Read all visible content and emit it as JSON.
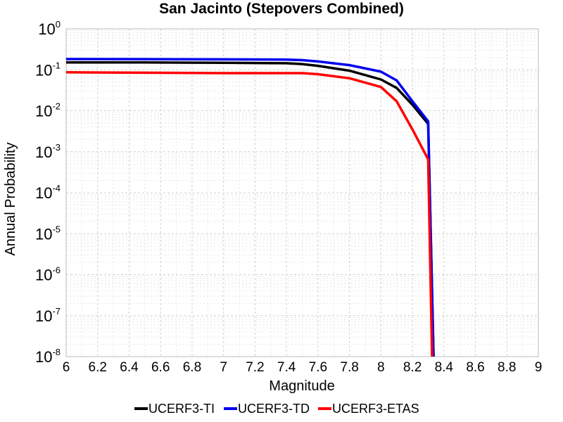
{
  "chart_data": {
    "type": "line",
    "title": "San Jacinto (Stepovers Combined)",
    "xlabel": "Magnitude",
    "ylabel": "Annual Probability",
    "xlim": [
      6,
      9
    ],
    "ylim": [
      1e-08,
      1
    ],
    "y_scale": "log",
    "grid": true,
    "legend_position": "bottom",
    "x_ticks": [
      "6",
      "6.2",
      "6.4",
      "6.6",
      "6.8",
      "7",
      "7.2",
      "7.4",
      "7.6",
      "7.8",
      "8",
      "8.2",
      "8.4",
      "8.6",
      "8.8",
      "9"
    ],
    "y_ticks": [
      {
        "base": "10",
        "exp": "0"
      },
      {
        "base": "10",
        "exp": "-1"
      },
      {
        "base": "10",
        "exp": "-2"
      },
      {
        "base": "10",
        "exp": "-3"
      },
      {
        "base": "10",
        "exp": "-4"
      },
      {
        "base": "10",
        "exp": "-5"
      },
      {
        "base": "10",
        "exp": "-6"
      },
      {
        "base": "10",
        "exp": "-7"
      },
      {
        "base": "10",
        "exp": "-8"
      }
    ],
    "series": [
      {
        "name": "UCERF3-TI",
        "color": "#000000",
        "x": [
          6.0,
          6.5,
          7.0,
          7.4,
          7.5,
          7.6,
          7.8,
          8.0,
          8.1,
          8.2,
          8.3,
          8.34
        ],
        "y": [
          0.152,
          0.151,
          0.148,
          0.145,
          0.138,
          0.125,
          0.095,
          0.058,
          0.036,
          0.014,
          0.0048,
          1e-09
        ]
      },
      {
        "name": "UCERF3-TD",
        "color": "#0000ee",
        "x": [
          6.0,
          6.5,
          7.0,
          7.4,
          7.5,
          7.6,
          7.8,
          8.0,
          8.1,
          8.2,
          8.3,
          8.34
        ],
        "y": [
          0.183,
          0.182,
          0.18,
          0.178,
          0.172,
          0.16,
          0.13,
          0.09,
          0.055,
          0.017,
          0.0055,
          1e-09
        ]
      },
      {
        "name": "UCERF3-ETAS",
        "color": "#ff0000",
        "x": [
          6.0,
          6.5,
          7.0,
          7.5,
          7.6,
          7.8,
          8.0,
          8.1,
          8.2,
          8.3,
          8.33
        ],
        "y": [
          0.087,
          0.085,
          0.083,
          0.083,
          0.078,
          0.062,
          0.038,
          0.017,
          0.0035,
          0.00065,
          1e-09
        ]
      }
    ]
  }
}
